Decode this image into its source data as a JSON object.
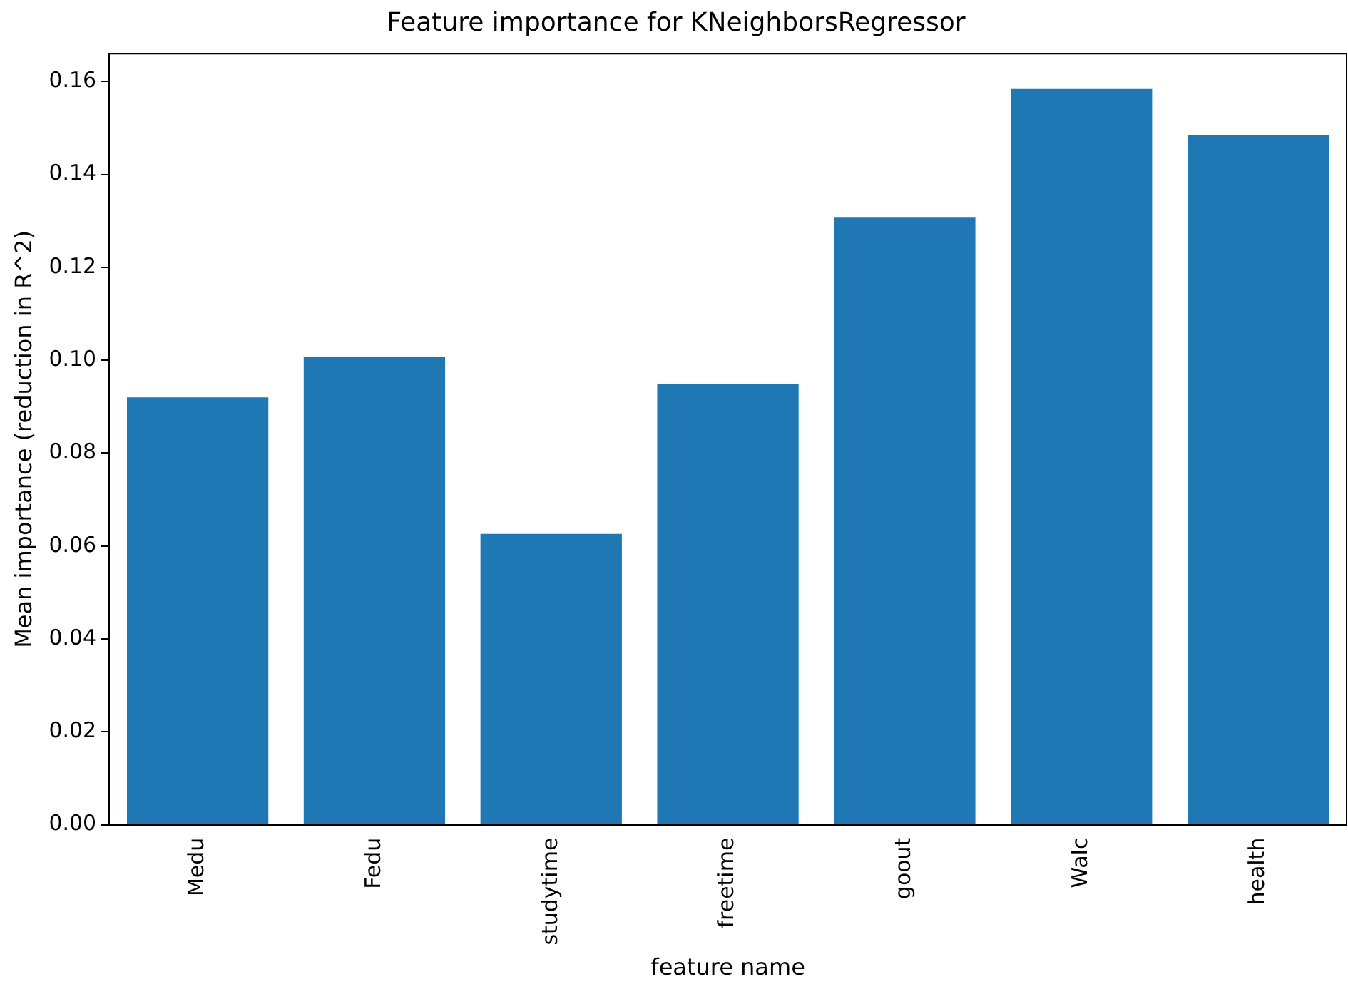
{
  "chart_data": {
    "type": "bar",
    "title": "Feature importance for KNeighborsRegressor",
    "xlabel": "feature name",
    "ylabel": "Mean importance (reduction in R^2)",
    "categories": [
      "Medu",
      "Fedu",
      "studytime",
      "freetime",
      "goout",
      "Walc",
      "health"
    ],
    "values": [
      0.092,
      0.1007,
      0.0626,
      0.0948,
      0.1307,
      0.1584,
      0.1485
    ],
    "color": "#1f77b4",
    "ylim": [
      0,
      0.166
    ],
    "yticks": [
      {
        "value": 0,
        "label": "0.00"
      },
      {
        "value": 0.02,
        "label": "0.02"
      },
      {
        "value": 0.04,
        "label": "0.04"
      },
      {
        "value": 0.06,
        "label": "0.06"
      },
      {
        "value": 0.08,
        "label": "0.08"
      },
      {
        "value": 0.1,
        "label": "0.10"
      },
      {
        "value": 0.12,
        "label": "0.12"
      },
      {
        "value": 0.14,
        "label": "0.14"
      },
      {
        "value": 0.16,
        "label": "0.16"
      }
    ],
    "grid": false,
    "legend": false
  }
}
